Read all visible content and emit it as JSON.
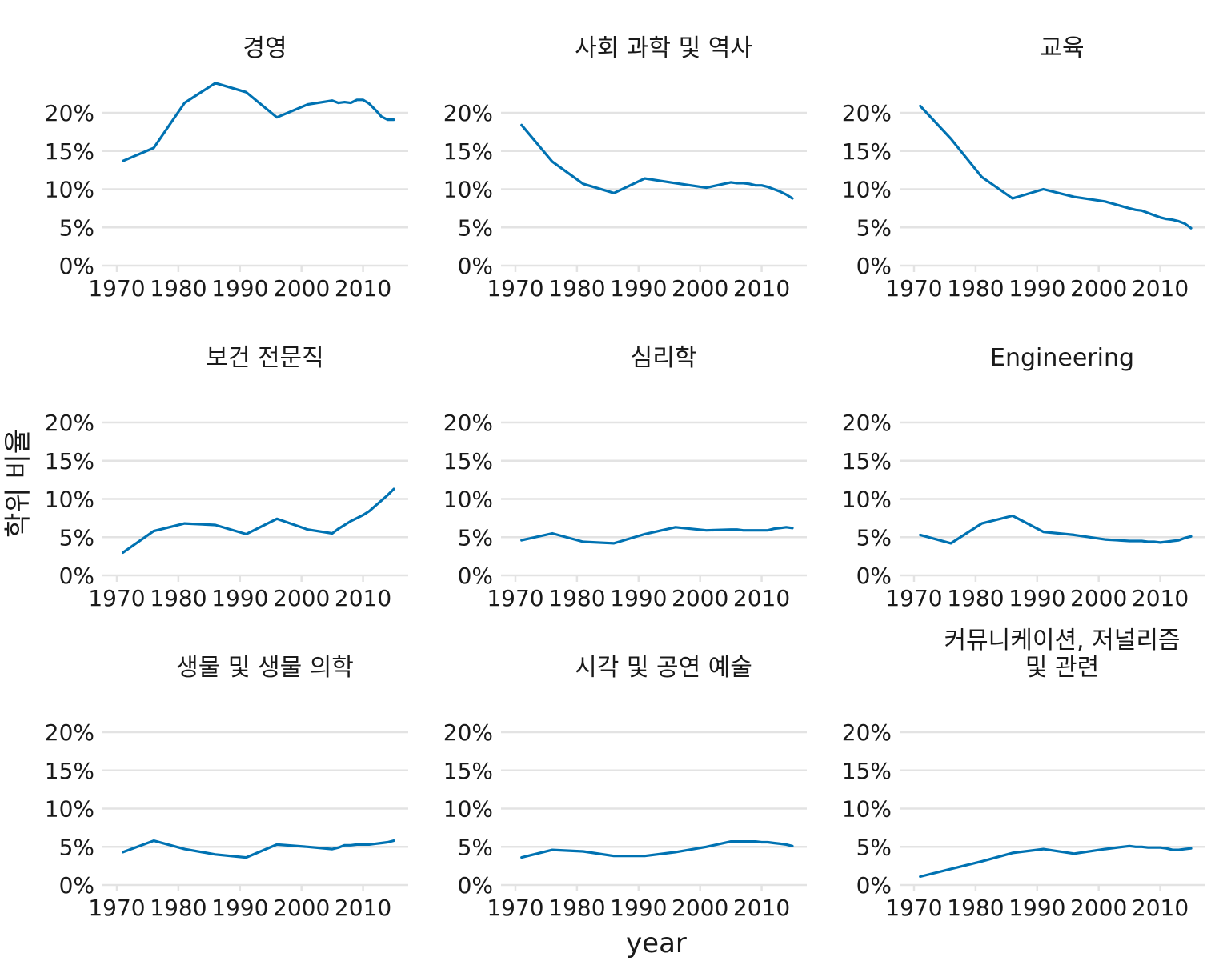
{
  "chart_data": {
    "type": "line",
    "layout": "small-multiples 3x3",
    "xlabel": "year",
    "ylabel": "학위 비율",
    "xlim": [
      1970,
      2015
    ],
    "ylim": [
      0,
      0.25
    ],
    "x_ticks": [
      "1970",
      "1980",
      "1990",
      "2000",
      "2010"
    ],
    "y_ticks": [
      "0%",
      "5%",
      "10%",
      "15%",
      "20%"
    ],
    "y_tick_values": [
      0,
      0.05,
      0.1,
      0.15,
      0.2
    ],
    "grid": "horizontal",
    "line_color": "#0072B2",
    "panels": [
      {
        "title": "경영",
        "x": [
          1971,
          1976,
          1981,
          1986,
          1991,
          1996,
          2001,
          2005,
          2006,
          2007,
          2008,
          2009,
          2010,
          2011,
          2012,
          2013,
          2014,
          2015
        ],
        "values": [
          0.137,
          0.154,
          0.213,
          0.239,
          0.227,
          0.194,
          0.211,
          0.216,
          0.213,
          0.214,
          0.213,
          0.217,
          0.217,
          0.212,
          0.204,
          0.195,
          0.191,
          0.191
        ]
      },
      {
        "title": "사회 과학 및 역사",
        "x": [
          1971,
          1976,
          1981,
          1986,
          1991,
          1996,
          2001,
          2005,
          2006,
          2007,
          2008,
          2009,
          2010,
          2011,
          2012,
          2013,
          2014,
          2015
        ],
        "values": [
          0.184,
          0.136,
          0.107,
          0.095,
          0.114,
          0.108,
          0.102,
          0.109,
          0.108,
          0.108,
          0.107,
          0.105,
          0.105,
          0.103,
          0.1,
          0.097,
          0.093,
          0.088
        ]
      },
      {
        "title": "교육",
        "x": [
          1971,
          1976,
          1981,
          1986,
          1991,
          1996,
          2001,
          2005,
          2006,
          2007,
          2008,
          2009,
          2010,
          2011,
          2012,
          2013,
          2014,
          2015
        ],
        "values": [
          0.209,
          0.166,
          0.116,
          0.088,
          0.1,
          0.09,
          0.084,
          0.075,
          0.073,
          0.072,
          0.069,
          0.066,
          0.063,
          0.061,
          0.06,
          0.058,
          0.055,
          0.049
        ]
      },
      {
        "title": "보건 전문직",
        "x": [
          1971,
          1976,
          1981,
          1986,
          1991,
          1996,
          2001,
          2005,
          2006,
          2007,
          2008,
          2009,
          2010,
          2011,
          2012,
          2013,
          2014,
          2015
        ],
        "values": [
          0.03,
          0.058,
          0.068,
          0.066,
          0.054,
          0.074,
          0.06,
          0.055,
          0.061,
          0.066,
          0.071,
          0.075,
          0.079,
          0.084,
          0.091,
          0.098,
          0.105,
          0.113
        ]
      },
      {
        "title": "심리학",
        "x": [
          1971,
          1976,
          1981,
          1986,
          1991,
          1996,
          2001,
          2005,
          2006,
          2007,
          2008,
          2009,
          2010,
          2011,
          2012,
          2013,
          2014,
          2015
        ],
        "values": [
          0.046,
          0.055,
          0.044,
          0.042,
          0.054,
          0.063,
          0.059,
          0.06,
          0.06,
          0.059,
          0.059,
          0.059,
          0.059,
          0.059,
          0.061,
          0.062,
          0.063,
          0.062
        ]
      },
      {
        "title": "Engineering",
        "x": [
          1971,
          1976,
          1981,
          1986,
          1991,
          1996,
          2001,
          2005,
          2006,
          2007,
          2008,
          2009,
          2010,
          2011,
          2012,
          2013,
          2014,
          2015
        ],
        "values": [
          0.053,
          0.042,
          0.068,
          0.078,
          0.057,
          0.053,
          0.047,
          0.045,
          0.045,
          0.045,
          0.044,
          0.044,
          0.043,
          0.044,
          0.045,
          0.046,
          0.049,
          0.051
        ]
      },
      {
        "title": "생물 및 생물 의학",
        "x": [
          1971,
          1976,
          1981,
          1986,
          1991,
          1996,
          2001,
          2005,
          2006,
          2007,
          2008,
          2009,
          2010,
          2011,
          2012,
          2013,
          2014,
          2015
        ],
        "values": [
          0.043,
          0.058,
          0.047,
          0.04,
          0.036,
          0.053,
          0.05,
          0.047,
          0.049,
          0.052,
          0.052,
          0.053,
          0.053,
          0.053,
          0.054,
          0.055,
          0.056,
          0.058
        ]
      },
      {
        "title": "시각 및 공연 예술",
        "x": [
          1971,
          1976,
          1981,
          1986,
          1991,
          1996,
          2001,
          2005,
          2006,
          2007,
          2008,
          2009,
          2010,
          2011,
          2012,
          2013,
          2014,
          2015
        ],
        "values": [
          0.036,
          0.046,
          0.044,
          0.038,
          0.038,
          0.043,
          0.05,
          0.057,
          0.057,
          0.057,
          0.057,
          0.057,
          0.056,
          0.056,
          0.055,
          0.054,
          0.053,
          0.051
        ]
      },
      {
        "title": "커뮤니케이션, 저널리즘\n및 관련",
        "x": [
          1971,
          1976,
          1981,
          1986,
          1991,
          1996,
          2001,
          2005,
          2006,
          2007,
          2008,
          2009,
          2010,
          2011,
          2012,
          2013,
          2014,
          2015
        ],
        "values": [
          0.011,
          0.021,
          0.031,
          0.042,
          0.047,
          0.041,
          0.047,
          0.051,
          0.05,
          0.05,
          0.049,
          0.049,
          0.049,
          0.048,
          0.046,
          0.046,
          0.047,
          0.048
        ]
      }
    ]
  }
}
